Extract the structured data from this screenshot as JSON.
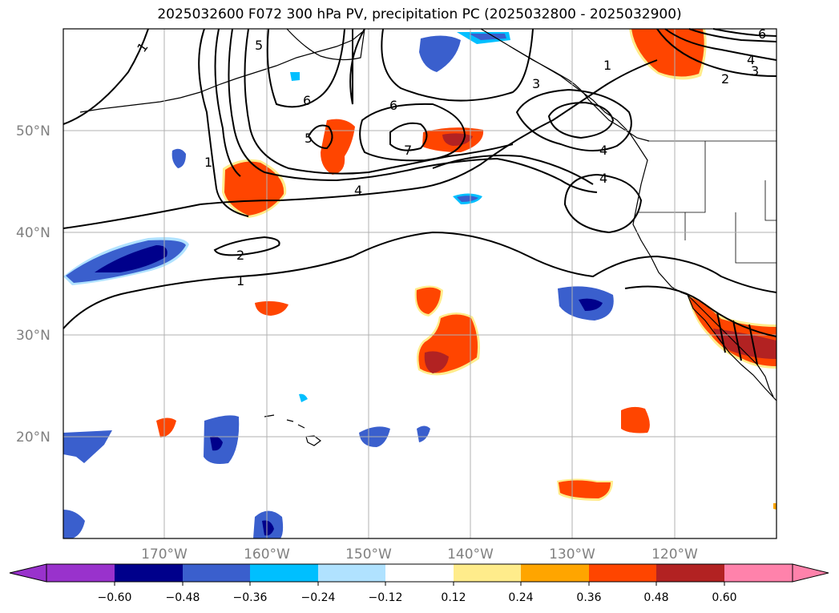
{
  "title": "2025032600 F072 300 hPa PV, precipitation PC (2025032800 - 2025032900)",
  "map": {
    "lat_labels": [
      "50°N",
      "40°N",
      "30°N",
      "20°N"
    ],
    "lon_labels": [
      "170°W",
      "160°W",
      "150°W",
      "140°W",
      "130°W",
      "120°W"
    ],
    "contour_labels": [
      "1",
      "5",
      "6",
      "6",
      "5",
      "7",
      "4",
      "2",
      "1",
      "3",
      "1",
      "4",
      "2",
      "3",
      "6",
      "4",
      "4",
      "1"
    ]
  },
  "colorbar": {
    "ticks": [
      "−0.60",
      "−0.48",
      "−0.36",
      "−0.24",
      "−0.12",
      "0.12",
      "0.24",
      "0.36",
      "0.48",
      "0.60"
    ],
    "colors": [
      "#9932cc",
      "#00008b",
      "#3a5fcd",
      "#00bfff",
      "#b0e2ff",
      "#ffffff",
      "#ffec8b",
      "#ffa500",
      "#ff4500",
      "#b22222",
      "#ff82ab"
    ]
  },
  "colors": {
    "neg_dark": "#00008b",
    "neg_mid": "#3a5fcd",
    "neg_light": "#00bfff",
    "neg_pale": "#b0e2ff",
    "pos_pale": "#ffec8b",
    "pos_orange": "#ffa500",
    "pos_red": "#ff4500",
    "pos_dark": "#b22222",
    "grid": "#b0b0b0"
  }
}
